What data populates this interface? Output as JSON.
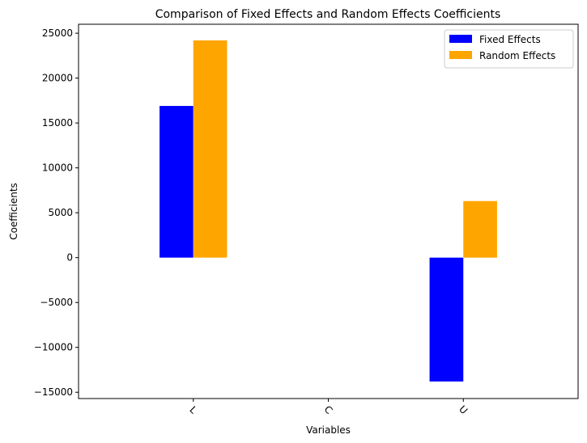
{
  "chart_data": {
    "type": "bar",
    "title": "Comparison of Fixed Effects and Random Effects Coefficients",
    "xlabel": "Variables",
    "ylabel": "Coefficients",
    "categories": [
      "L",
      "C",
      "U"
    ],
    "series": [
      {
        "name": "Fixed Effects",
        "color": "#0000ff",
        "values": [
          16900,
          0,
          -13800
        ]
      },
      {
        "name": "Random Effects",
        "color": "#ffa500",
        "values": [
          24200,
          0,
          6300
        ]
      }
    ],
    "ylim": [
      -15700,
      26000
    ],
    "yticks": [
      -15000,
      -10000,
      -5000,
      0,
      5000,
      10000,
      15000,
      20000,
      25000
    ],
    "ytick_labels": [
      "−15000",
      "−10000",
      "−5000",
      "0",
      "5000",
      "10000",
      "15000",
      "20000",
      "25000"
    ],
    "xtick_rotation": 45,
    "grid": false,
    "legend_position": "top-right"
  }
}
